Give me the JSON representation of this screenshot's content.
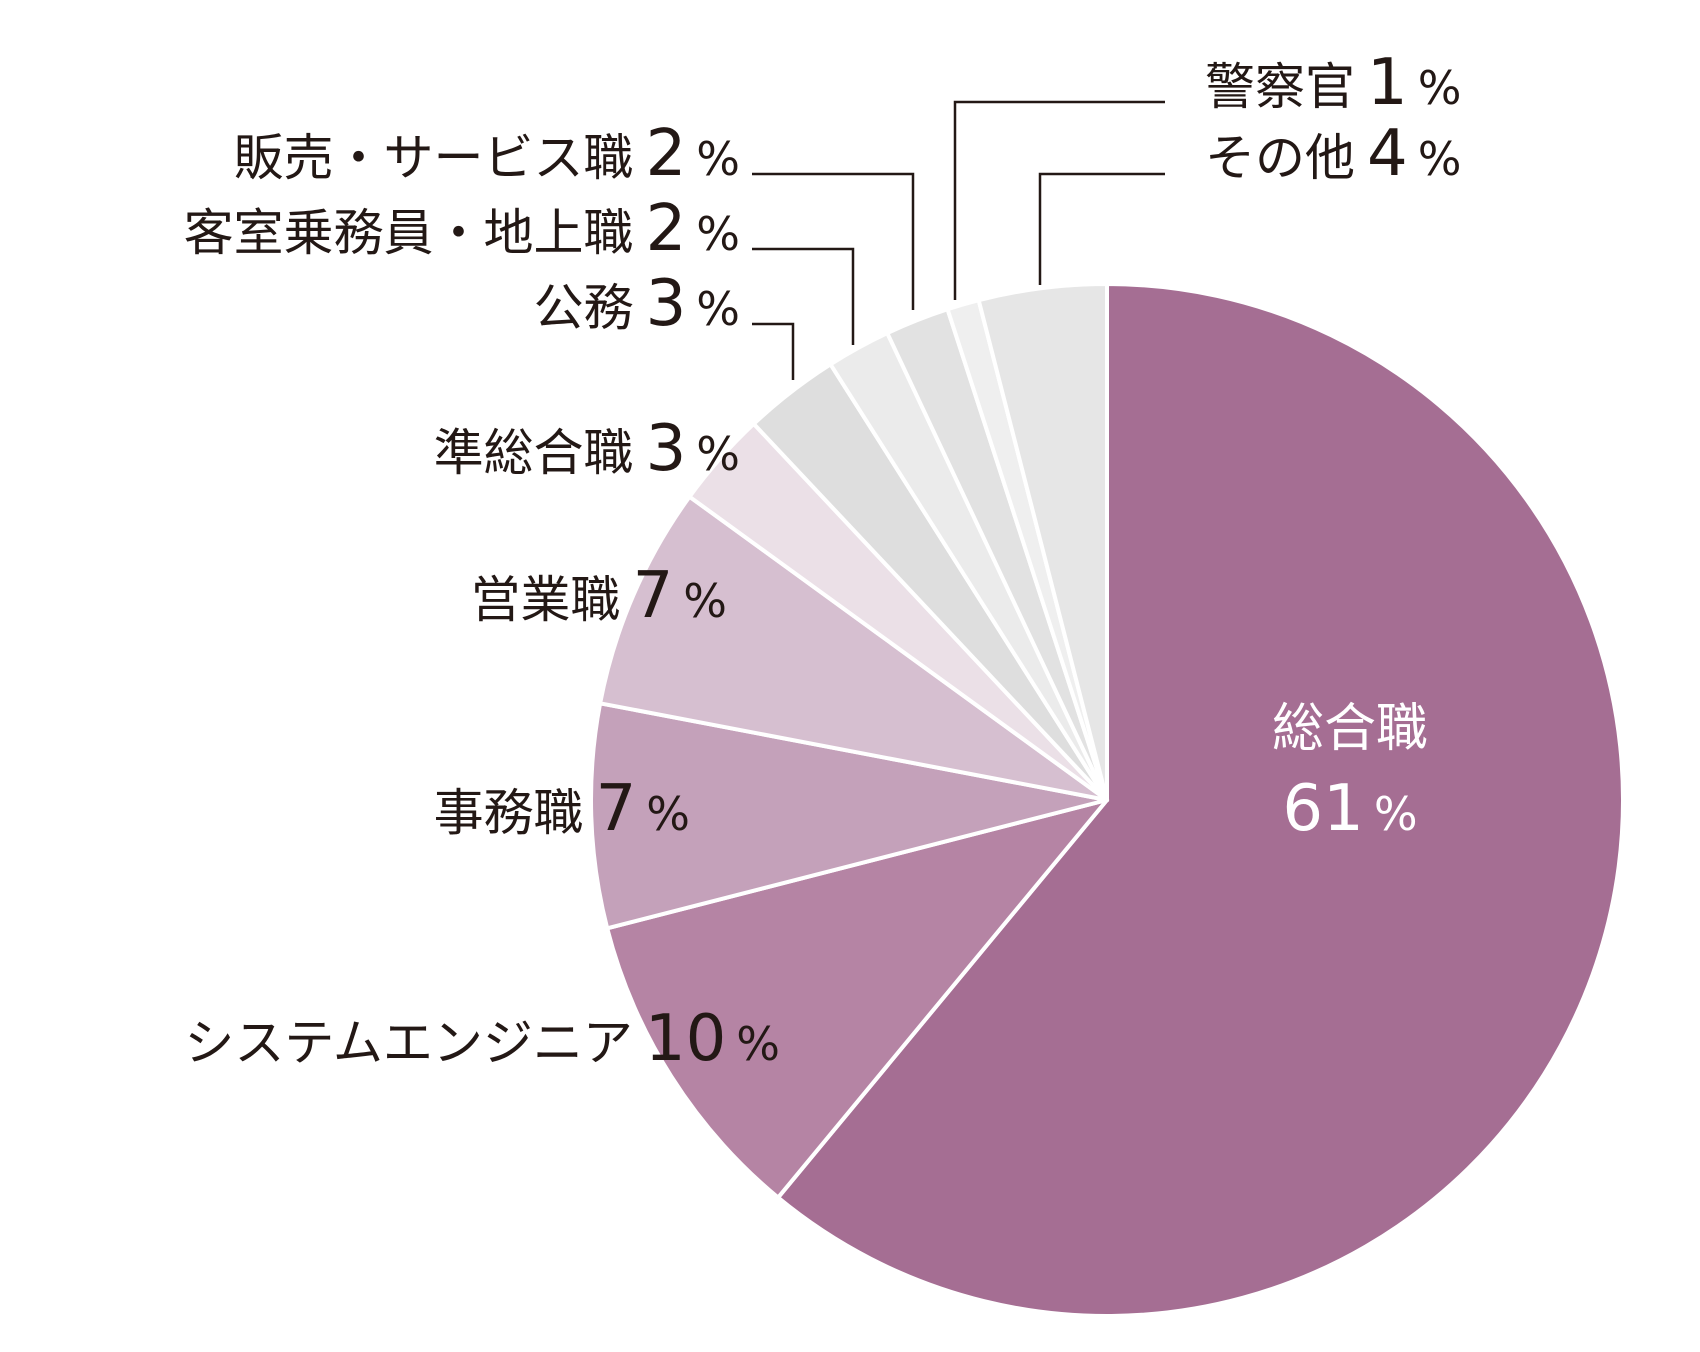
{
  "chart_data": {
    "type": "pie",
    "start": "12 o'clock",
    "direction": "clockwise",
    "slices": [
      {
        "label": "総合職",
        "value": 61,
        "color": "#a56e93"
      },
      {
        "label": "システムエンジニア",
        "value": 10,
        "color": "#b584a4"
      },
      {
        "label": "事務職",
        "value": 7,
        "color": "#c4a1ba"
      },
      {
        "label": "営業職",
        "value": 7,
        "color": "#d6bfd0"
      },
      {
        "label": "準総合職",
        "value": 3,
        "color": "#ebe0e7"
      },
      {
        "label": "公務",
        "value": 3,
        "color": "#dedede"
      },
      {
        "label": "客室乗務員・地上職",
        "value": 2,
        "color": "#ebebeb"
      },
      {
        "label": "販売・サービス職",
        "value": 2,
        "color": "#e2e2e2"
      },
      {
        "label": "警察官",
        "value": 1,
        "color": "#efefef"
      },
      {
        "label": "その他",
        "value": 4,
        "color": "#e6e6e6"
      }
    ],
    "percent_sign": "%"
  }
}
